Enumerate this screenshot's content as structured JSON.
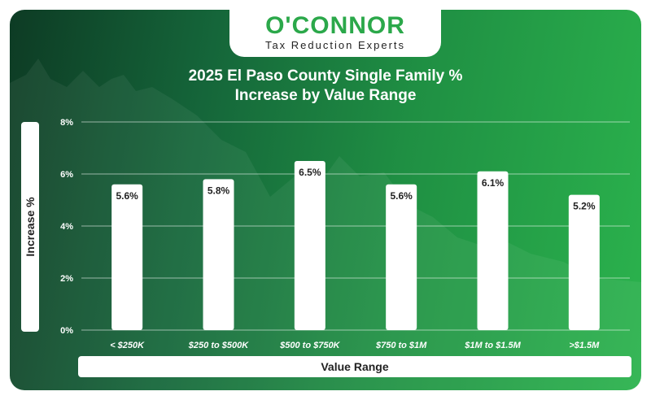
{
  "logo": {
    "name": "O'CONNOR",
    "tagline": "Tax Reduction Experts"
  },
  "colors": {
    "brand_green": "#2ba84a",
    "bar": "#ffffff",
    "text_dark": "#222222"
  },
  "chart_data": {
    "type": "bar",
    "title": "2025 El Paso County Single Family % Increase by Value Range",
    "title_lines": [
      "2025 El Paso County Single Family %",
      "Increase by Value Range"
    ],
    "xlabel": "Value Range",
    "ylabel": "Increase %",
    "categories": [
      "< $250K",
      "$250 to $500K",
      "$500 to $750K",
      "$750 to $1M",
      "$1M to $1.5M",
      ">$1.5M"
    ],
    "values": [
      5.6,
      5.8,
      6.5,
      5.6,
      6.1,
      5.2
    ],
    "value_labels": [
      "5.6%",
      "5.8%",
      "6.5%",
      "5.6%",
      "6.1%",
      "5.2%"
    ],
    "yticks": [
      0,
      2,
      4,
      6,
      8
    ],
    "ytick_labels": [
      "0%",
      "2%",
      "4%",
      "6%",
      "8%"
    ],
    "ylim": [
      0,
      8
    ],
    "grid": true,
    "legend": "none"
  }
}
